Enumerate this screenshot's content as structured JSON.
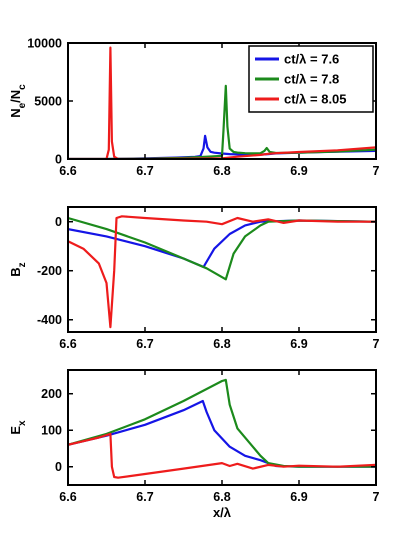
{
  "chart_data": [
    {
      "type": "line",
      "panel": "density",
      "xlabel": "",
      "ylabel_main": "N",
      "ylabel_sub1": "e",
      "ylabel_mid": "/N",
      "ylabel_sub2": "c",
      "xlim": [
        6.6,
        7.0
      ],
      "ylim": [
        0,
        10000
      ],
      "xticks": [
        6.6,
        6.7,
        6.8,
        6.9,
        7.0
      ],
      "xtick_labels": [
        "6.6",
        "6.7",
        "6.8",
        "6.9",
        "7"
      ],
      "yticks": [
        0,
        5000,
        10000
      ],
      "ytick_labels": [
        "0",
        "5000",
        "10000"
      ],
      "legend": {
        "placement": "top-right",
        "entries": [
          {
            "label": "ct/λ = 7.6",
            "color": "#1515e6"
          },
          {
            "label": "ct/λ = 7.8",
            "color": "#1c8a1c"
          },
          {
            "label": "ct/λ = 8.05",
            "color": "#ee1c1c"
          }
        ]
      },
      "series": [
        {
          "color": "#1515e6",
          "x": [
            6.6,
            6.65,
            6.7,
            6.74,
            6.765,
            6.772,
            6.776,
            6.778,
            6.781,
            6.785,
            6.79,
            6.8,
            6.81,
            6.82,
            6.83,
            6.85,
            6.86,
            6.87,
            6.9,
            6.93,
            6.96,
            7.0
          ],
          "y": [
            0,
            0,
            50,
            120,
            180,
            250,
            900,
            2000,
            1000,
            620,
            540,
            470,
            420,
            400,
            380,
            380,
            420,
            480,
            550,
            600,
            650,
            700
          ]
        },
        {
          "color": "#1c8a1c",
          "x": [
            6.6,
            6.65,
            6.7,
            6.75,
            6.78,
            6.8,
            6.802,
            6.805,
            6.807,
            6.81,
            6.815,
            6.82,
            6.83,
            6.84,
            6.85,
            6.855,
            6.858,
            6.862,
            6.87,
            6.9,
            6.95,
            7.0
          ],
          "y": [
            0,
            0,
            30,
            100,
            200,
            280,
            2500,
            6300,
            2800,
            900,
            600,
            550,
            500,
            480,
            500,
            700,
            950,
            600,
            520,
            550,
            650,
            800
          ]
        },
        {
          "color": "#ee1c1c",
          "x": [
            6.6,
            6.65,
            6.653,
            6.655,
            6.657,
            6.66,
            6.665,
            6.7,
            6.75,
            6.8,
            6.82,
            6.85,
            6.86,
            6.87,
            6.9,
            6.95,
            7.0
          ],
          "y": [
            0,
            0,
            800,
            9600,
            1500,
            200,
            0,
            0,
            30,
            60,
            200,
            350,
            450,
            500,
            600,
            750,
            1000
          ]
        }
      ]
    },
    {
      "type": "line",
      "panel": "bz",
      "xlabel": "",
      "ylabel_main": "B",
      "ylabel_sub1": "z",
      "xlim": [
        6.6,
        7.0
      ],
      "ylim": [
        -450,
        60
      ],
      "xticks": [
        6.6,
        6.7,
        6.8,
        6.9,
        7.0
      ],
      "xtick_labels": [
        "6.6",
        "6.7",
        "6.8",
        "6.9",
        "7"
      ],
      "yticks": [
        -400,
        -200,
        0
      ],
      "ytick_labels": [
        "-400",
        "-200",
        "0"
      ],
      "series": [
        {
          "color": "#1515e6",
          "x": [
            6.6,
            6.65,
            6.7,
            6.75,
            6.776,
            6.79,
            6.81,
            6.83,
            6.85,
            6.87,
            6.9,
            7.0
          ],
          "y": [
            -30,
            -60,
            -100,
            -150,
            -185,
            -110,
            -50,
            -15,
            0,
            2,
            5,
            0
          ]
        },
        {
          "color": "#1c8a1c",
          "x": [
            6.6,
            6.65,
            6.7,
            6.75,
            6.78,
            6.805,
            6.815,
            6.83,
            6.85,
            6.86,
            6.9,
            7.0
          ],
          "y": [
            15,
            -30,
            -85,
            -150,
            -190,
            -235,
            -130,
            -60,
            -15,
            0,
            5,
            0
          ]
        },
        {
          "color": "#ee1c1c",
          "x": [
            6.6,
            6.62,
            6.64,
            6.65,
            6.655,
            6.66,
            6.663,
            6.67,
            6.7,
            6.75,
            6.78,
            6.8,
            6.82,
            6.84,
            6.86,
            6.88,
            6.9,
            6.95,
            7.0
          ],
          "y": [
            -80,
            -110,
            -170,
            -250,
            -430,
            -200,
            15,
            22,
            15,
            5,
            0,
            -10,
            15,
            0,
            10,
            -5,
            5,
            0,
            0
          ]
        }
      ]
    },
    {
      "type": "line",
      "panel": "ex",
      "xlabel": "x/λ",
      "ylabel_main": "E",
      "ylabel_sub1": "x",
      "xlim": [
        6.6,
        7.0
      ],
      "ylim": [
        -50,
        265
      ],
      "xticks": [
        6.6,
        6.7,
        6.8,
        6.9,
        7.0
      ],
      "xtick_labels": [
        "6.6",
        "6.7",
        "6.8",
        "6.9",
        "7"
      ],
      "yticks": [
        0,
        100,
        200
      ],
      "ytick_labels": [
        "0",
        "100",
        "200"
      ],
      "series": [
        {
          "color": "#1515e6",
          "x": [
            6.6,
            6.65,
            6.7,
            6.75,
            6.775,
            6.78,
            6.79,
            6.81,
            6.83,
            6.85,
            6.86,
            6.87,
            6.9,
            7.0
          ],
          "y": [
            60,
            85,
            115,
            155,
            180,
            150,
            100,
            55,
            30,
            18,
            10,
            2,
            0,
            0
          ]
        },
        {
          "color": "#1c8a1c",
          "x": [
            6.6,
            6.65,
            6.7,
            6.75,
            6.8,
            6.805,
            6.81,
            6.82,
            6.84,
            6.85,
            6.86,
            6.88,
            6.9,
            7.0
          ],
          "y": [
            60,
            90,
            130,
            180,
            235,
            238,
            170,
            105,
            55,
            30,
            10,
            2,
            0,
            0
          ]
        },
        {
          "color": "#ee1c1c",
          "x": [
            6.6,
            6.62,
            6.64,
            6.655,
            6.657,
            6.66,
            6.665,
            6.7,
            6.75,
            6.8,
            6.81,
            6.82,
            6.84,
            6.86,
            6.88,
            6.9,
            6.95,
            7.0
          ],
          "y": [
            60,
            70,
            80,
            90,
            0,
            -28,
            -30,
            -20,
            -5,
            10,
            2,
            8,
            -5,
            5,
            0,
            3,
            0,
            5
          ]
        }
      ]
    }
  ]
}
